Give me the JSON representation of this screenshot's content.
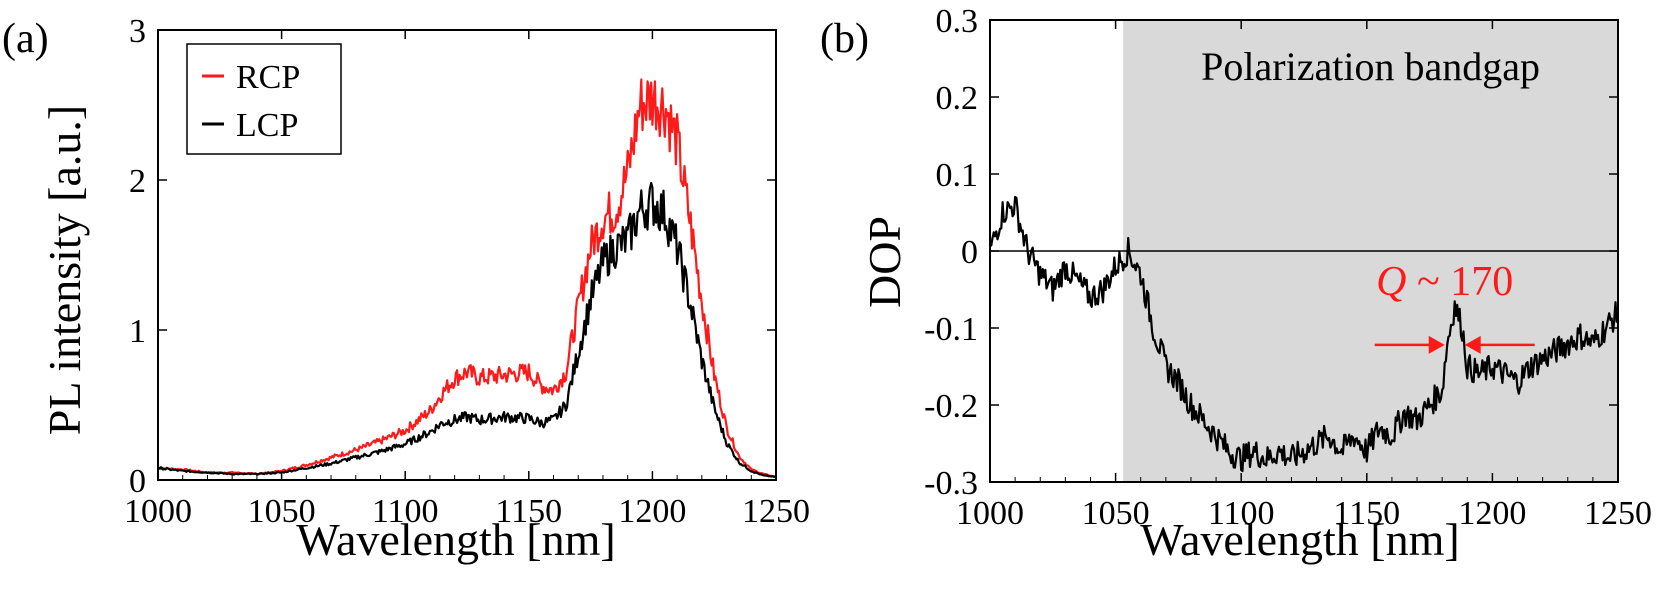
{
  "chart_data": [
    {
      "type": "line",
      "panel_label": "(a)",
      "xlabel": "Wavelength [nm]",
      "ylabel": "PL intensity [a.u.]",
      "xlim": [
        1000,
        1250
      ],
      "ylim": [
        0,
        3
      ],
      "xticks": [
        1000,
        1050,
        1100,
        1150,
        1200,
        1250
      ],
      "yticks": [
        0,
        1,
        2,
        3
      ],
      "legend_position": "top-left",
      "series": [
        {
          "name": "RCP",
          "color": "#ff1a1a",
          "x": [
            1000,
            1010,
            1020,
            1030,
            1040,
            1050,
            1060,
            1070,
            1080,
            1090,
            1100,
            1110,
            1115,
            1120,
            1125,
            1130,
            1140,
            1150,
            1155,
            1160,
            1165,
            1170,
            1175,
            1180,
            1185,
            1190,
            1195,
            1200,
            1205,
            1210,
            1215,
            1220,
            1225,
            1230,
            1235,
            1240,
            1245,
            1250
          ],
          "y": [
            0.08,
            0.07,
            0.05,
            0.05,
            0.04,
            0.06,
            0.1,
            0.15,
            0.2,
            0.26,
            0.33,
            0.46,
            0.58,
            0.68,
            0.72,
            0.68,
            0.7,
            0.72,
            0.63,
            0.6,
            0.72,
            1.15,
            1.55,
            1.75,
            1.8,
            2.05,
            2.5,
            2.55,
            2.5,
            2.25,
            1.75,
            1.2,
            0.7,
            0.35,
            0.16,
            0.07,
            0.04,
            0.02
          ]
        },
        {
          "name": "LCP",
          "color": "#000000",
          "x": [
            1000,
            1010,
            1020,
            1030,
            1040,
            1050,
            1060,
            1070,
            1080,
            1090,
            1100,
            1110,
            1115,
            1120,
            1125,
            1130,
            1140,
            1150,
            1155,
            1160,
            1165,
            1170,
            1175,
            1180,
            1185,
            1190,
            1195,
            1200,
            1205,
            1210,
            1215,
            1220,
            1225,
            1230,
            1235,
            1240,
            1245,
            1250
          ],
          "y": [
            0.08,
            0.06,
            0.05,
            0.04,
            0.04,
            0.05,
            0.08,
            0.11,
            0.15,
            0.19,
            0.24,
            0.32,
            0.38,
            0.4,
            0.42,
            0.4,
            0.42,
            0.41,
            0.38,
            0.4,
            0.5,
            0.85,
            1.2,
            1.45,
            1.55,
            1.6,
            1.8,
            1.85,
            1.78,
            1.55,
            1.2,
            0.8,
            0.48,
            0.25,
            0.12,
            0.06,
            0.03,
            0.02
          ]
        }
      ]
    },
    {
      "type": "line",
      "panel_label": "(b)",
      "xlabel": "Wavelength [nm]",
      "ylabel": "DOP",
      "xlim": [
        1000,
        1250
      ],
      "ylim": [
        -0.3,
        0.3
      ],
      "xticks": [
        1000,
        1050,
        1100,
        1150,
        1200,
        1250
      ],
      "yticks": [
        -0.3,
        -0.2,
        -0.1,
        0,
        0.1,
        0.2,
        0.3
      ],
      "ytick_labels": [
        "-0.3",
        "-0.2",
        "-0.1",
        "0",
        "0.1",
        "0.2",
        "0.3"
      ],
      "zero_line": true,
      "shaded_region": {
        "x_start": 1053,
        "x_end": 1250,
        "label": "Polarization bandgap",
        "color": "#d9d9d9"
      },
      "annotation": {
        "text_italic": "Q",
        "text_rest": " ~ 170",
        "x": 1185,
        "y": -0.07,
        "color": "#ff1a1a"
      },
      "series": [
        {
          "name": "DOP",
          "color": "#000000",
          "x": [
            1000,
            1005,
            1010,
            1015,
            1020,
            1025,
            1030,
            1035,
            1040,
            1045,
            1050,
            1055,
            1060,
            1065,
            1070,
            1075,
            1080,
            1085,
            1090,
            1095,
            1100,
            1105,
            1110,
            1115,
            1120,
            1125,
            1130,
            1135,
            1140,
            1145,
            1150,
            1155,
            1160,
            1165,
            1170,
            1175,
            1180,
            1182,
            1185,
            1188,
            1190,
            1195,
            1200,
            1205,
            1210,
            1215,
            1220,
            1225,
            1230,
            1235,
            1240,
            1245,
            1250
          ],
          "y": [
            0.0,
            0.05,
            0.06,
            0.0,
            -0.03,
            -0.05,
            -0.02,
            -0.04,
            -0.06,
            -0.05,
            -0.02,
            0.0,
            -0.03,
            -0.1,
            -0.15,
            -0.17,
            -0.2,
            -0.22,
            -0.24,
            -0.26,
            -0.27,
            -0.26,
            -0.27,
            -0.26,
            -0.27,
            -0.26,
            -0.25,
            -0.24,
            -0.26,
            -0.24,
            -0.26,
            -0.23,
            -0.24,
            -0.21,
            -0.22,
            -0.2,
            -0.18,
            -0.12,
            -0.07,
            -0.1,
            -0.15,
            -0.16,
            -0.15,
            -0.16,
            -0.17,
            -0.15,
            -0.14,
            -0.13,
            -0.12,
            -0.11,
            -0.12,
            -0.1,
            -0.08
          ]
        }
      ]
    }
  ]
}
